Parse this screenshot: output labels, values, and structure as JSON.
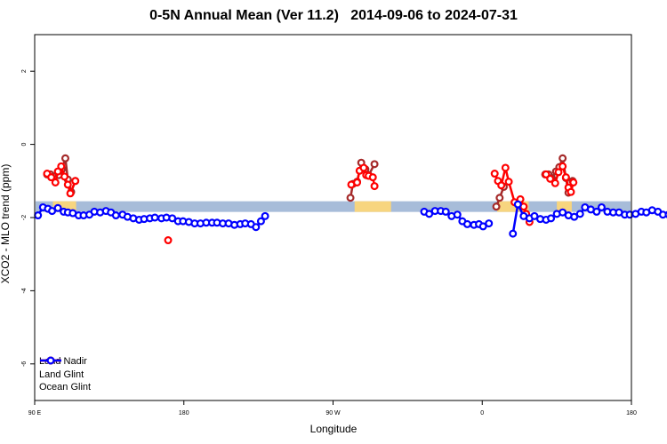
{
  "chart_data": {
    "type": "line",
    "title": "0-5N Annual Mean (Ver 11.2)   2014-09-06 to 2024-07-31",
    "xlabel": "Longitude",
    "ylabel": "XCO2 - MLO trend (ppm)",
    "xlim": [
      90,
      450
    ],
    "ylim": [
      -7,
      3
    ],
    "x_ticks": [
      {
        "value": 90,
        "label": "90 E"
      },
      {
        "value": 180,
        "label": "180"
      },
      {
        "value": 270,
        "label": "90 W"
      },
      {
        "value": 360,
        "label": "0"
      },
      {
        "value": 450,
        "label": "180"
      }
    ],
    "y_ticks": [
      {
        "value": -6,
        "label": "-6"
      },
      {
        "value": -4,
        "label": "-4"
      },
      {
        "value": -2,
        "label": "-2"
      },
      {
        "value": 0,
        "label": "0"
      },
      {
        "value": 2,
        "label": "2"
      }
    ],
    "legend_position": "bottom-left",
    "land_ocean_band": {
      "y": -1.7,
      "ocean_color": "#a7bcd9",
      "land_color": "#f7d57f",
      "land_ranges": [
        [
          101,
          115
        ],
        [
          283,
          305
        ],
        [
          369,
          388
        ],
        [
          405,
          414
        ],
        [
          455,
          468
        ]
      ]
    },
    "series": [
      {
        "name": "Land Nadir",
        "color": "#a52a2a",
        "segments": [
          [
            [
              97.5,
              -0.82
            ],
            [
              99.5,
              -0.82
            ],
            [
              101.5,
              -0.88
            ],
            [
              104.5,
              -0.84
            ],
            [
              106.5,
              -0.68
            ],
            [
              108.5,
              -0.38
            ],
            [
              110,
              -0.96
            ],
            [
              112,
              -1.3
            ],
            [
              114.5,
              -1.0
            ]
          ],
          [
            [
              280.5,
              -1.46
            ],
            [
              282,
              -1.08
            ],
            [
              284.5,
              -1.02
            ],
            [
              287,
              -0.5
            ],
            [
              289.5,
              -0.68
            ],
            [
              291.5,
              -0.84
            ],
            [
              295,
              -0.54
            ]
          ],
          [
            [
              368.5,
              -1.7
            ],
            [
              370.5,
              -1.46
            ],
            [
              373,
              -1.16
            ]
          ],
          [
            [
              398,
              -0.82
            ],
            [
              400,
              -0.82
            ],
            [
              402,
              -0.92
            ],
            [
              404.5,
              -0.74
            ],
            [
              406.5,
              -0.62
            ],
            [
              408.5,
              -0.38
            ],
            [
              410.5,
              -0.92
            ],
            [
              412,
              -1.32
            ],
            [
              414.5,
              -1.0
            ]
          ]
        ]
      },
      {
        "name": "Land Glint",
        "color": "#ff0000",
        "segments": [
          [
            [
              97.5,
              -0.8
            ],
            [
              100,
              -0.9
            ],
            [
              102.5,
              -1.04
            ],
            [
              104,
              -0.74
            ],
            [
              106,
              -0.6
            ],
            [
              108,
              -0.88
            ],
            [
              110,
              -1.1
            ],
            [
              111.5,
              -1.34
            ],
            [
              114.5,
              -1.0
            ]
          ],
          [
            [
              170.5,
              -2.62
            ]
          ],
          [
            [
              281,
              -1.1
            ],
            [
              284.5,
              -1.04
            ],
            [
              286,
              -0.72
            ],
            [
              288.5,
              -0.64
            ],
            [
              290,
              -0.84
            ],
            [
              291.5,
              -0.86
            ],
            [
              294,
              -0.9
            ],
            [
              295,
              -1.14
            ]
          ],
          [
            [
              367.5,
              -0.8
            ],
            [
              369.5,
              -1.0
            ],
            [
              371.5,
              -1.12
            ],
            [
              374,
              -0.64
            ],
            [
              376,
              -1.02
            ],
            [
              379.5,
              -1.58
            ],
            [
              383,
              -1.5
            ],
            [
              385,
              -1.7
            ],
            [
              386.5,
              -1.9
            ],
            [
              388.5,
              -2.12
            ]
          ],
          [
            [
              398.5,
              -0.82
            ],
            [
              401,
              -0.94
            ],
            [
              404,
              -1.06
            ],
            [
              406,
              -0.76
            ],
            [
              408.5,
              -0.6
            ],
            [
              410.5,
              -0.9
            ],
            [
              412,
              -1.18
            ],
            [
              413.5,
              -1.3
            ],
            [
              415,
              -1.04
            ]
          ]
        ]
      },
      {
        "name": "Ocean Glint",
        "color": "#0000ff",
        "segments": [
          [
            [
              92,
              -1.94
            ],
            [
              95,
              -1.72
            ],
            [
              98,
              -1.76
            ],
            [
              100.5,
              -1.82
            ],
            [
              104,
              -1.74
            ],
            [
              107.5,
              -1.84
            ],
            [
              110,
              -1.86
            ],
            [
              113,
              -1.88
            ],
            [
              116.5,
              -1.94
            ],
            [
              119.5,
              -1.94
            ],
            [
              123,
              -1.92
            ],
            [
              126,
              -1.84
            ],
            [
              129.5,
              -1.86
            ],
            [
              133,
              -1.82
            ],
            [
              136,
              -1.86
            ],
            [
              139,
              -1.94
            ],
            [
              143,
              -1.92
            ],
            [
              146,
              -1.98
            ],
            [
              149.5,
              -2.02
            ],
            [
              153,
              -2.06
            ],
            [
              156,
              -2.04
            ],
            [
              159.5,
              -2.02
            ],
            [
              162.5,
              -2.0
            ],
            [
              166.5,
              -2.02
            ],
            [
              169.5,
              -2.0
            ],
            [
              173,
              -2.02
            ],
            [
              176.5,
              -2.1
            ],
            [
              179.5,
              -2.1
            ],
            [
              183,
              -2.12
            ],
            [
              186.5,
              -2.16
            ],
            [
              190,
              -2.16
            ],
            [
              193.5,
              -2.14
            ],
            [
              197,
              -2.14
            ],
            [
              200,
              -2.14
            ],
            [
              203.5,
              -2.16
            ],
            [
              207,
              -2.16
            ],
            [
              210.5,
              -2.2
            ],
            [
              214,
              -2.18
            ],
            [
              217,
              -2.16
            ],
            [
              220.5,
              -2.18
            ],
            [
              223.5,
              -2.26
            ],
            [
              226.5,
              -2.1
            ],
            [
              229,
              -1.96
            ]
          ],
          [
            [
              325,
              -1.84
            ],
            [
              328,
              -1.9
            ],
            [
              331.5,
              -1.82
            ],
            [
              335,
              -1.82
            ],
            [
              338,
              -1.84
            ],
            [
              341.5,
              -1.96
            ],
            [
              345,
              -1.92
            ],
            [
              348,
              -2.1
            ],
            [
              351,
              -2.18
            ],
            [
              355,
              -2.2
            ],
            [
              358,
              -2.18
            ],
            [
              360.5,
              -2.24
            ],
            [
              364,
              -2.16
            ]
          ],
          [
            [
              378.5,
              -2.44
            ],
            [
              381.5,
              -1.64
            ],
            [
              385,
              -1.96
            ],
            [
              388.5,
              -2.02
            ],
            [
              391.5,
              -1.96
            ],
            [
              395,
              -2.04
            ],
            [
              398.5,
              -2.06
            ],
            [
              401.5,
              -2.02
            ],
            [
              405,
              -1.9
            ],
            [
              408.5,
              -1.86
            ],
            [
              412,
              -1.94
            ],
            [
              415.5,
              -1.98
            ],
            [
              419,
              -1.9
            ],
            [
              422,
              -1.72
            ],
            [
              425.5,
              -1.78
            ],
            [
              429,
              -1.84
            ],
            [
              432,
              -1.72
            ],
            [
              435.5,
              -1.84
            ],
            [
              439,
              -1.86
            ],
            [
              442.5,
              -1.86
            ],
            [
              446,
              -1.92
            ],
            [
              449,
              -1.92
            ],
            [
              452.5,
              -1.9
            ],
            [
              456,
              -1.84
            ],
            [
              459,
              -1.86
            ],
            [
              462.5,
              -1.8
            ],
            [
              466,
              -1.84
            ],
            [
              469,
              -1.92
            ],
            [
              472.5,
              -1.92
            ],
            [
              476,
              -1.96
            ]
          ]
        ]
      }
    ]
  }
}
